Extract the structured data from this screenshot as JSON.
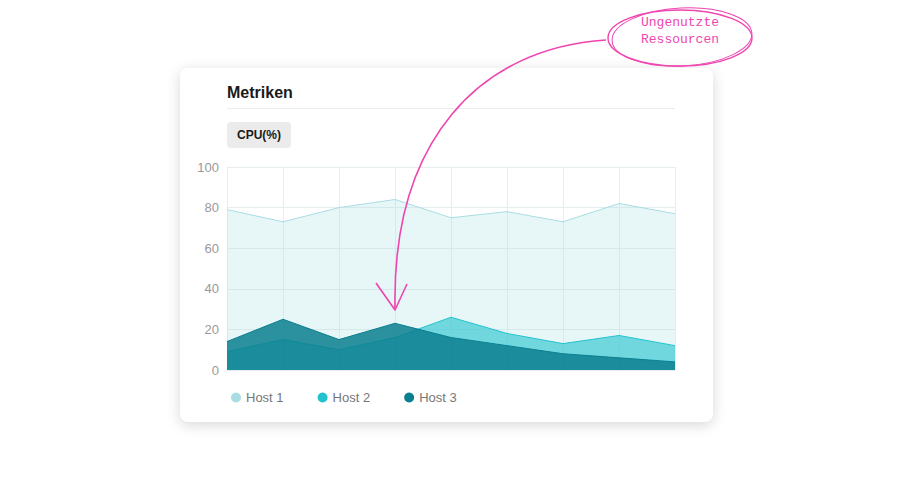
{
  "chart_data": {
    "type": "area",
    "title": "Metriken",
    "subtitle": "CPU(%)",
    "categories": [
      null,
      null,
      null,
      null,
      null,
      null,
      null,
      null,
      null
    ],
    "series": [
      {
        "name": "Host 1",
        "color": "#a8dde3",
        "values": [
          79,
          73,
          80,
          84,
          75,
          78,
          73,
          82,
          77
        ]
      },
      {
        "name": "Host 2",
        "color": "#22c3ce",
        "values": [
          9,
          15,
          10,
          16,
          26,
          18,
          13,
          17,
          12
        ]
      },
      {
        "name": "Host 3",
        "color": "#0b7f8f",
        "values": [
          14,
          25,
          15,
          23,
          16,
          12,
          8,
          6,
          4
        ]
      }
    ],
    "ylim": [
      0,
      100
    ],
    "yticks": [
      0,
      20,
      40,
      60,
      80,
      100
    ],
    "grid": true,
    "stacked": false,
    "legend": "bottom-left",
    "tick_labels": "y",
    "annotations": [
      {
        "text": "Ungenutzte Ressourcen"
      }
    ]
  }
}
